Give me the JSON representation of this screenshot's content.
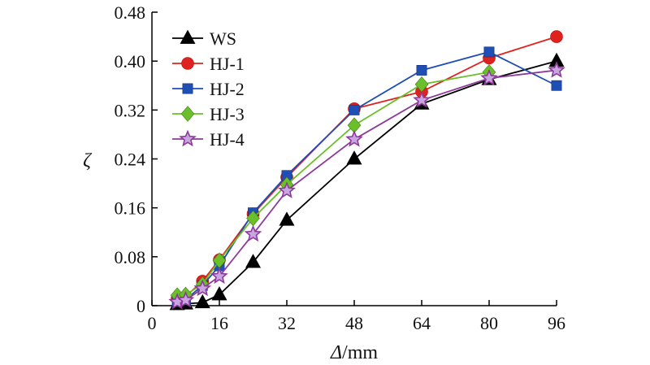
{
  "chart_data": {
    "type": "line",
    "title": "",
    "xlabel_italic": "Δ",
    "xlabel_unit": "/mm",
    "ylabel": "ζ",
    "x_ticks": [
      0,
      16,
      32,
      48,
      64,
      80,
      96
    ],
    "y_ticks": [
      "0",
      "0.08",
      "0.16",
      "0.24",
      "0.32",
      "0.40",
      "0.48"
    ],
    "xlim": [
      0,
      96
    ],
    "ylim": [
      0,
      0.48
    ],
    "grid": false,
    "legend_position": "top-left",
    "series": [
      {
        "name": "WS",
        "color": "#000000",
        "marker": "triangle",
        "x": [
          6,
          8,
          12,
          16,
          24,
          32,
          48,
          64,
          80,
          96
        ],
        "y": [
          0.002,
          0.003,
          0.005,
          0.018,
          0.071,
          0.14,
          0.24,
          0.33,
          0.37,
          0.4
        ]
      },
      {
        "name": "HJ-1",
        "color": "#e0221f",
        "marker": "circle",
        "x": [
          6,
          8,
          12,
          16,
          24,
          32,
          48,
          64,
          80,
          96
        ],
        "y": [
          0.012,
          0.015,
          0.04,
          0.075,
          0.15,
          0.21,
          0.322,
          0.35,
          0.405,
          0.44
        ]
      },
      {
        "name": "HJ-2",
        "color": "#1f4eb4",
        "marker": "square",
        "x": [
          6,
          8,
          12,
          16,
          24,
          32,
          48,
          64,
          80,
          96
        ],
        "y": [
          0.007,
          0.01,
          0.033,
          0.065,
          0.152,
          0.213,
          0.32,
          0.385,
          0.415,
          0.36
        ]
      },
      {
        "name": "HJ-3",
        "color": "#6abf2a",
        "marker": "diamond",
        "x": [
          6,
          8,
          12,
          16,
          24,
          32,
          48,
          64,
          80,
          96
        ],
        "y": [
          0.017,
          0.018,
          0.035,
          0.074,
          0.143,
          0.198,
          0.295,
          0.362,
          0.382,
          null
        ]
      },
      {
        "name": "HJ-4",
        "color": "#8e3a9a",
        "marker": "star",
        "x": [
          6,
          8,
          12,
          16,
          24,
          32,
          48,
          64,
          80,
          96
        ],
        "y": [
          0.006,
          0.009,
          0.028,
          0.048,
          0.117,
          0.188,
          0.272,
          0.336,
          0.372,
          0.385
        ]
      }
    ]
  }
}
